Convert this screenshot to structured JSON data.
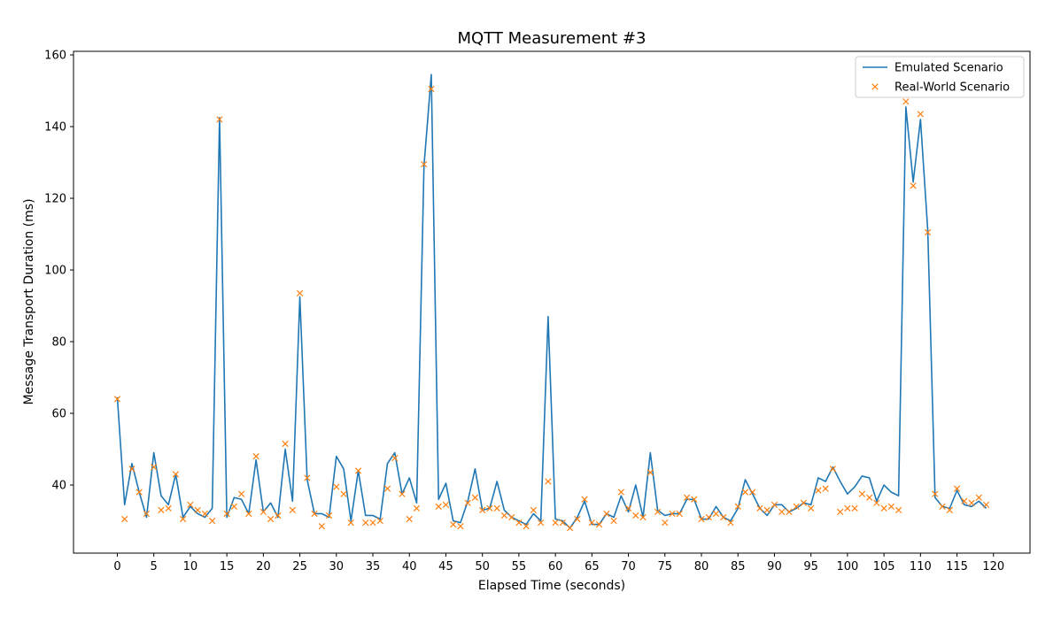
{
  "chart_data": {
    "type": "line",
    "title": "MQTT Measurement #3",
    "xlabel": "Elapsed Time (seconds)",
    "ylabel": "Message Transport Duration (ms)",
    "xlim": [
      -6,
      125
    ],
    "ylim": [
      21,
      161
    ],
    "xticks": [
      0,
      5,
      10,
      15,
      20,
      25,
      30,
      35,
      40,
      45,
      50,
      55,
      60,
      65,
      70,
      75,
      80,
      85,
      90,
      95,
      100,
      105,
      110,
      115,
      120
    ],
    "yticks": [
      40,
      60,
      80,
      100,
      120,
      140,
      160
    ],
    "grid": false,
    "legend_position": "top-right",
    "series": [
      {
        "name": "Emulated Scenario",
        "style": "line",
        "color": "#1f77b4",
        "x": [
          0,
          1,
          2,
          3,
          4,
          5,
          6,
          7,
          8,
          9,
          10,
          11,
          12,
          13,
          14,
          15,
          16,
          17,
          18,
          19,
          20,
          21,
          22,
          23,
          24,
          25,
          26,
          27,
          28,
          29,
          30,
          31,
          32,
          33,
          34,
          35,
          36,
          37,
          38,
          39,
          40,
          41,
          42,
          43,
          44,
          45,
          46,
          47,
          48,
          49,
          50,
          51,
          52,
          53,
          54,
          55,
          56,
          57,
          58,
          59,
          60,
          61,
          62,
          63,
          64,
          65,
          66,
          67,
          68,
          69,
          70,
          71,
          72,
          73,
          74,
          75,
          76,
          77,
          78,
          79,
          80,
          81,
          82,
          83,
          84,
          85,
          86,
          87,
          88,
          89,
          90,
          91,
          92,
          93,
          94,
          95,
          96,
          97,
          98,
          99,
          100,
          101,
          102,
          103,
          104,
          105,
          106,
          107,
          108,
          109,
          110,
          111,
          112,
          113,
          114,
          115,
          116,
          117,
          118,
          119
        ],
        "y": [
          64.5,
          34.5,
          46,
          38,
          31,
          49,
          37,
          34.5,
          43,
          31,
          34,
          32,
          31,
          33.5,
          142.5,
          31,
          36.5,
          36,
          32,
          47,
          32.5,
          35,
          31,
          50,
          35.5,
          92.5,
          41.5,
          32,
          32,
          31,
          48,
          44.5,
          30,
          44,
          31.5,
          31.5,
          30.5,
          46,
          49,
          37.5,
          42,
          35,
          129,
          154.5,
          36,
          40.5,
          30,
          29.5,
          35.5,
          44.5,
          33,
          33.5,
          41,
          33,
          31,
          30,
          29,
          32,
          30,
          87,
          30.5,
          30,
          28,
          31,
          35.5,
          29,
          29,
          32,
          31,
          37,
          32.5,
          40,
          31,
          49,
          33,
          31.5,
          32,
          32,
          36,
          36,
          30.5,
          30.5,
          34,
          31,
          30,
          33.5,
          41.5,
          37.5,
          33.5,
          31.5,
          34.5,
          34.5,
          32.5,
          33.5,
          35,
          34.5,
          42,
          41,
          45,
          41,
          37.5,
          39.5,
          42.5,
          42,
          35.5,
          40,
          38,
          37,
          145.5,
          124.5,
          142,
          111,
          36.5,
          34,
          33.5,
          38.5,
          34.5,
          34,
          35.5,
          33.5
        ]
      },
      {
        "name": "Real-World Scenario",
        "style": "marker-x",
        "color": "#ff7f0e",
        "x": [
          0,
          1,
          2,
          3,
          4,
          5,
          6,
          7,
          8,
          9,
          10,
          11,
          12,
          13,
          14,
          15,
          16,
          17,
          18,
          19,
          20,
          21,
          22,
          23,
          24,
          25,
          26,
          27,
          28,
          29,
          30,
          31,
          32,
          33,
          34,
          35,
          36,
          37,
          38,
          39,
          40,
          41,
          42,
          43,
          44,
          45,
          46,
          47,
          48,
          49,
          50,
          51,
          52,
          53,
          54,
          55,
          56,
          57,
          58,
          59,
          60,
          61,
          62,
          63,
          64,
          65,
          66,
          67,
          68,
          69,
          70,
          71,
          72,
          73,
          74,
          75,
          76,
          77,
          78,
          79,
          80,
          81,
          82,
          83,
          84,
          85,
          86,
          87,
          88,
          89,
          90,
          91,
          92,
          93,
          94,
          95,
          96,
          97,
          98,
          99,
          100,
          101,
          102,
          103,
          104,
          105,
          106,
          107,
          108,
          109,
          110,
          111,
          112,
          113,
          114,
          115,
          116,
          117,
          118,
          119
        ],
        "y": [
          64,
          30.5,
          44.5,
          38,
          32,
          45,
          33,
          33.5,
          43,
          30.5,
          34.5,
          33,
          32,
          30,
          142,
          32,
          34,
          37.5,
          32,
          48,
          32.5,
          30.5,
          31.5,
          51.5,
          33,
          93.5,
          42,
          32,
          28.5,
          31.5,
          39.5,
          37.5,
          29.5,
          44,
          29.5,
          29.5,
          30,
          39,
          47.5,
          37.5,
          30.5,
          33.5,
          129.5,
          150.5,
          34,
          34.5,
          29,
          28.5,
          35,
          36.5,
          33,
          33.5,
          33.5,
          31.5,
          31,
          29.5,
          28.5,
          33,
          29.5,
          41,
          29.5,
          29.5,
          28,
          30.5,
          36,
          29.5,
          29,
          32,
          30,
          38,
          33.5,
          31.5,
          31,
          43.5,
          32.5,
          29.5,
          32,
          32,
          36.5,
          36,
          30.5,
          31,
          32,
          31,
          29.5,
          34,
          38,
          38,
          33.5,
          33,
          34.5,
          32.5,
          32.5,
          34,
          35,
          33.5,
          38.5,
          39,
          44.5,
          32.5,
          33.5,
          33.5,
          37.5,
          36.5,
          35,
          33.5,
          34,
          33,
          147,
          123.5,
          143.5,
          110.5,
          37.5,
          34,
          33,
          39,
          35.5,
          35,
          36.5,
          34.5
        ]
      }
    ]
  }
}
